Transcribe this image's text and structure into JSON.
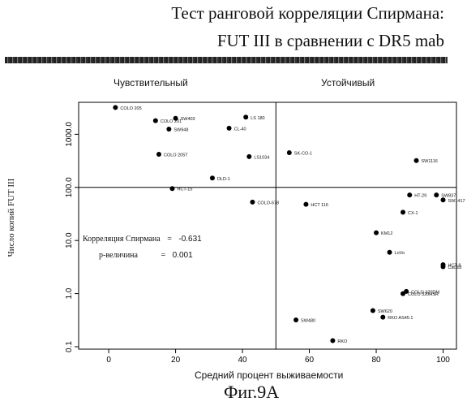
{
  "header": {
    "title_line1": "Тест ранговой корреляции Спирмана:",
    "title_line2": "FUT III в сравнении с DR5 mab"
  },
  "regions": {
    "left": "Чувствительный",
    "right": "Устойчивый"
  },
  "caption": "Фиг.9A",
  "stats": {
    "corr_label": "Корреляция Спирмана",
    "corr_eq": "=",
    "corr_value": "-0.631",
    "p_label": "p-величина",
    "p_eq": "=",
    "p_value": "0.001"
  },
  "chart_data": {
    "type": "scatter",
    "xlabel": "Средний процент выживаемости",
    "ylabel": "Число копий FUT III",
    "xlim": [
      -9,
      104
    ],
    "ylim": [
      0.09,
      4000
    ],
    "yscale": "log",
    "x_ticks": [
      "0",
      "20",
      "40",
      "60",
      "80",
      "100"
    ],
    "y_ticks": [
      "0.1",
      "1.0",
      "10.0",
      "100.0",
      "1000.0"
    ],
    "reference_lines": {
      "x": 50,
      "y": 100
    },
    "grid": false,
    "points": [
      {
        "label": "COLO 205",
        "x": 2,
        "y": 3200
      },
      {
        "label": "COLO 201",
        "x": 14,
        "y": 1800
      },
      {
        "label": "SW403",
        "x": 20,
        "y": 2000
      },
      {
        "label": "SW948",
        "x": 18,
        "y": 1250
      },
      {
        "label": "LS 180",
        "x": 41,
        "y": 2100
      },
      {
        "label": "CL-40",
        "x": 36,
        "y": 1300
      },
      {
        "label": "COLO 205T",
        "x": 15,
        "y": 420
      },
      {
        "label": "LS1034",
        "x": 42,
        "y": 380
      },
      {
        "label": "DLD-1",
        "x": 31,
        "y": 150
      },
      {
        "label": "HCT-15",
        "x": 19,
        "y": 95
      },
      {
        "label": "COLO-678",
        "x": 43,
        "y": 53
      },
      {
        "label": "SK-CO-1",
        "x": 54,
        "y": 450
      },
      {
        "label": "SW1116",
        "x": 92,
        "y": 320
      },
      {
        "label": "HT-29",
        "x": 90,
        "y": 72
      },
      {
        "label": "SW837",
        "x": 98,
        "y": 72
      },
      {
        "label": "SW1417",
        "x": 100,
        "y": 58
      },
      {
        "label": "HCT 116",
        "x": 59,
        "y": 48
      },
      {
        "label": "CX-1",
        "x": 88,
        "y": 34
      },
      {
        "label": "KM12",
        "x": 80,
        "y": 14
      },
      {
        "label": "LoVo",
        "x": 84,
        "y": 6
      },
      {
        "label": "HCT-8",
        "x": 100,
        "y": 3.5
      },
      {
        "label": "CaCo2",
        "x": 100,
        "y": 3.2
      },
      {
        "label": "COLO 320DM",
        "x": 89,
        "y": 1.1
      },
      {
        "label": "COLO 320HSR",
        "x": 88,
        "y": 1.0
      },
      {
        "label": "SW620",
        "x": 79,
        "y": 0.48
      },
      {
        "label": "RKO AS45.1",
        "x": 82,
        "y": 0.36
      },
      {
        "label": "SW480",
        "x": 56,
        "y": 0.32
      },
      {
        "label": "RKO",
        "x": 67,
        "y": 0.13
      }
    ]
  }
}
